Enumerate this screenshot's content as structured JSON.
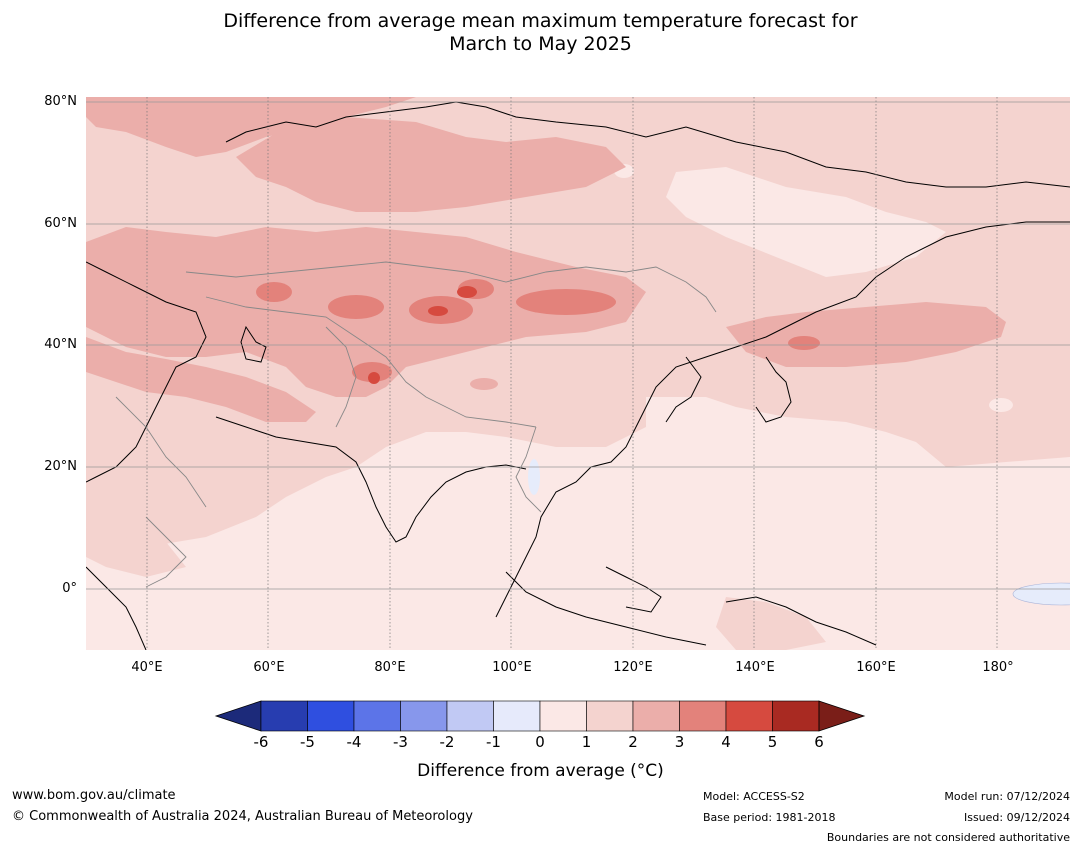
{
  "title": {
    "line1": "Difference from average mean maximum temperature forecast for",
    "line2": "March to May 2025"
  },
  "map": {
    "lat_labels": [
      "80°N",
      "60°N",
      "40°N",
      "20°N",
      "0°"
    ],
    "lon_labels": [
      "40°E",
      "60°E",
      "80°E",
      "100°E",
      "120°E",
      "140°E",
      "160°E",
      "180°"
    ],
    "extent": {
      "lon": [
        30,
        192
      ],
      "lat": [
        -10,
        81
      ]
    },
    "colors": {
      "anom_0_1": "#fbe8e6",
      "anom_1_2": "#f4d3cf",
      "anom_2_3": "#ebaeaa",
      "anom_3_4": "#e3827b",
      "anom_4_5": "#d64a3f",
      "anom_neg_0": "#e6ecfb",
      "coastline": "#000000",
      "borders": "#888888",
      "gridlines": "#777777"
    }
  },
  "colorbar": {
    "ticks": [
      "-6",
      "-5",
      "-4",
      "-3",
      "-2",
      "-1",
      "0",
      "1",
      "2",
      "3",
      "4",
      "5",
      "6"
    ],
    "colors": [
      "#1c2a7a",
      "#273db0",
      "#2f4fe0",
      "#5c74e8",
      "#8797ec",
      "#c1c9f4",
      "#e6eafb",
      "#fbe8e6",
      "#f4d3cf",
      "#ebaeaa",
      "#e3827b",
      "#d64a3f",
      "#a92a22",
      "#7a1e18"
    ],
    "label": "Difference from average (°C)"
  },
  "footer": {
    "website": "www.bom.gov.au/climate",
    "copyright": "© Commonwealth of Australia 2024, Australian Bureau of Meteorology",
    "model": "Model: ACCESS-S2",
    "base_period": "Base period: 1981-2018",
    "model_run": "Model run: 07/12/2024",
    "issued": "Issued: 09/12/2024",
    "disclaimer": "Boundaries are not considered authoritative"
  }
}
